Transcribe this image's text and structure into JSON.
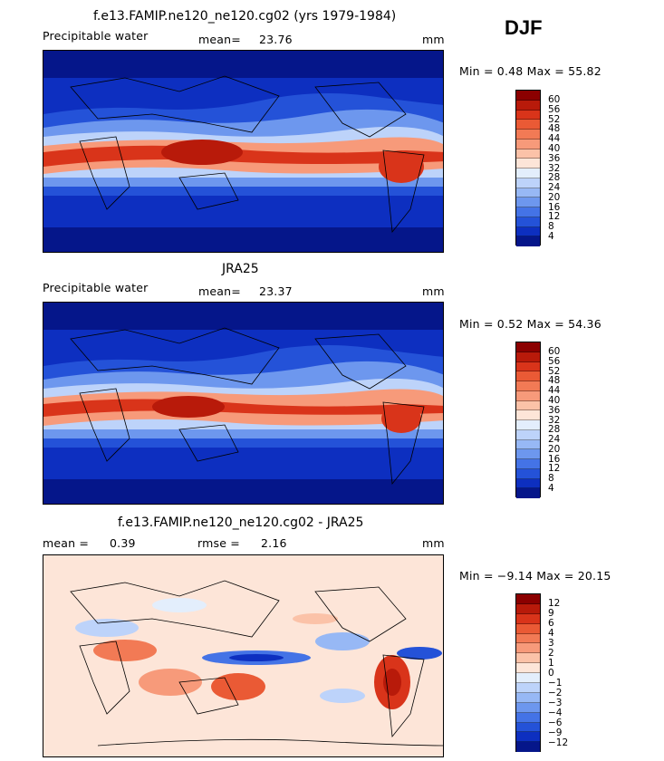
{
  "season": "DJF",
  "panels": [
    {
      "title": "f.e13.FAMIP.ne120_ne120.cg02 (yrs 1979-1984)",
      "left_label": "Precipitable water",
      "mid_label": "mean=",
      "mid_value": "23.76",
      "units": "mm",
      "minmax": "Min =   0.48 Max =  55.82",
      "colorbar_labels": [
        "60",
        "56",
        "52",
        "48",
        "44",
        "40",
        "36",
        "32",
        "28",
        "24",
        "20",
        "16",
        "12",
        "8",
        "4"
      ],
      "colors": [
        "#8b0000",
        "#b81a0a",
        "#d9341a",
        "#ea5a35",
        "#f27a55",
        "#f79a7a",
        "#fbc2a8",
        "#fde5d8",
        "#e3eefc",
        "#bdd3fa",
        "#97b8f5",
        "#6d97ee",
        "#4473e6",
        "#2452d8",
        "#0d2fc0",
        "#05168a"
      ]
    },
    {
      "title": "JRA25",
      "left_label": "Precipitable water",
      "mid_label": "mean=",
      "mid_value": "23.37",
      "units": "mm",
      "minmax": "Min =   0.52 Max =  54.36",
      "colorbar_labels": [
        "60",
        "56",
        "52",
        "48",
        "44",
        "40",
        "36",
        "32",
        "28",
        "24",
        "20",
        "16",
        "12",
        "8",
        "4"
      ],
      "colors": [
        "#8b0000",
        "#b81a0a",
        "#d9341a",
        "#ea5a35",
        "#f27a55",
        "#f79a7a",
        "#fbc2a8",
        "#fde5d8",
        "#e3eefc",
        "#bdd3fa",
        "#97b8f5",
        "#6d97ee",
        "#4473e6",
        "#2452d8",
        "#0d2fc0",
        "#05168a"
      ]
    },
    {
      "title": "f.e13.FAMIP.ne120_ne120.cg02 - JRA25",
      "left_label": "mean =",
      "left_value": "0.39",
      "mid_label": "rmse =",
      "mid_value": "2.16",
      "units": "mm",
      "minmax": "Min =  −9.14 Max =  20.15",
      "colorbar_labels": [
        "12",
        "9",
        "6",
        "4",
        "3",
        "2",
        "1",
        "0",
        "−1",
        "−2",
        "−3",
        "−4",
        "−6",
        "−9",
        "−12"
      ],
      "colors": [
        "#8b0000",
        "#b81a0a",
        "#d9341a",
        "#ea5a35",
        "#f27a55",
        "#f79a7a",
        "#fbc2a8",
        "#fde5d8",
        "#e3eefc",
        "#bdd3fa",
        "#97b8f5",
        "#6d97ee",
        "#4473e6",
        "#2452d8",
        "#0d2fc0",
        "#05168a"
      ]
    }
  ]
}
